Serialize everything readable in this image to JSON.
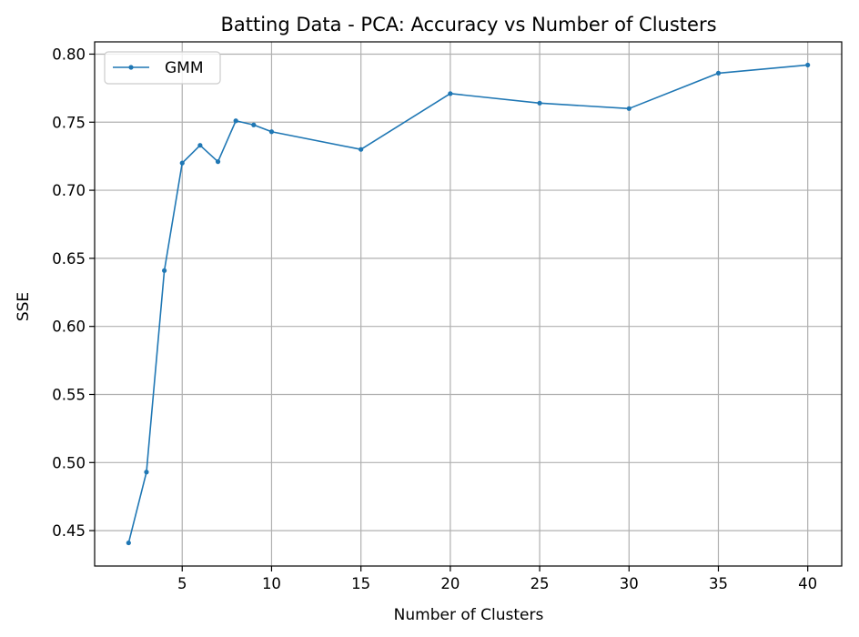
{
  "chart_data": {
    "type": "line",
    "title": "Batting Data - PCA: Accuracy vs Number of Clusters",
    "xlabel": "Number of Clusters",
    "ylabel": "SSE",
    "xlim": [
      0.1,
      41.9
    ],
    "ylim": [
      0.424,
      0.809
    ],
    "xticks": [
      5,
      10,
      15,
      20,
      25,
      30,
      35,
      40
    ],
    "yticks": [
      0.45,
      0.5,
      0.55,
      0.6,
      0.65,
      0.7,
      0.75,
      0.8
    ],
    "ytick_labels": [
      "0.45",
      "0.50",
      "0.55",
      "0.60",
      "0.65",
      "0.70",
      "0.75",
      "0.80"
    ],
    "grid": true,
    "legend_position": "top-left",
    "series": [
      {
        "name": "GMM",
        "color": "#1f77b4",
        "marker": "circle",
        "x": [
          2,
          3,
          4,
          5,
          6,
          7,
          8,
          9,
          10,
          15,
          20,
          25,
          30,
          35,
          40
        ],
        "y": [
          0.441,
          0.493,
          0.641,
          0.72,
          0.733,
          0.721,
          0.751,
          0.748,
          0.743,
          0.73,
          0.771,
          0.764,
          0.76,
          0.786,
          0.792
        ]
      }
    ]
  }
}
